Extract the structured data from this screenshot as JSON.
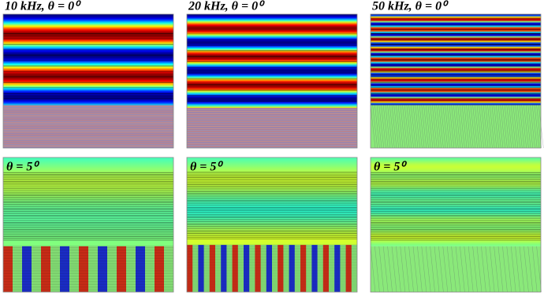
{
  "panels": [
    {
      "label": "10 kHz, θ = 0⁰"
    },
    {
      "label": "20 kHz, θ = 0⁰"
    },
    {
      "label": "50 kHz, θ = 0⁰"
    },
    {
      "label": "θ = 5⁰"
    },
    {
      "label": "θ = 5⁰"
    },
    {
      "label": "θ = 5⁰"
    }
  ]
}
